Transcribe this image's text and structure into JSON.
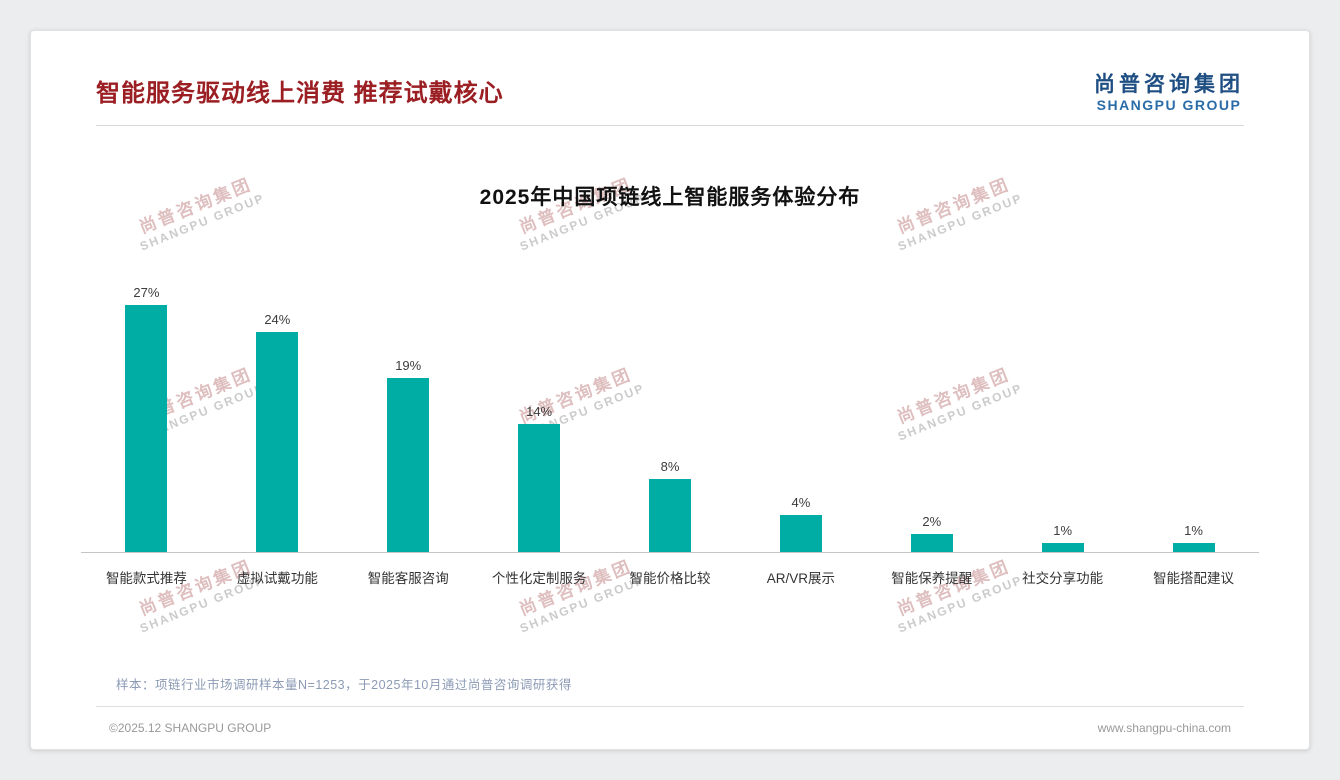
{
  "header": {
    "title": "智能服务驱动线上消费 推荐试戴核心"
  },
  "logo": {
    "cn": "尚普咨询集团",
    "en": "SHANGPU GROUP"
  },
  "watermark": {
    "cn": "尚普咨询集团",
    "en": "SHANGPU GROUP"
  },
  "chart_data": {
    "type": "bar",
    "title": "2025年中国项链线上智能服务体验分布",
    "categories": [
      "智能款式推荐",
      "虚拟试戴功能",
      "智能客服咨询",
      "个性化定制服务",
      "智能价格比较",
      "AR/VR展示",
      "智能保养提醒",
      "社交分享功能",
      "智能搭配建议"
    ],
    "values": [
      27,
      24,
      19,
      14,
      8,
      4,
      2,
      1,
      1
    ],
    "value_suffix": "%",
    "ylim": [
      0,
      30
    ],
    "grid": false,
    "legend": false,
    "bar_color": "#00ADA4"
  },
  "footnote": "样本：项链行业市场调研样本量N=1253，于2025年10月通过尚普咨询调研获得",
  "footer": {
    "left": "©2025.12 SHANGPU GROUP",
    "right": "www.shangpu-china.com"
  },
  "colors": {
    "accent_teal": "#00ADA4",
    "title_red": "#9B1E23",
    "logo_blue": "#1F4E82",
    "footnote_blue": "#8C9BB5",
    "page_background": "#ebedee"
  }
}
